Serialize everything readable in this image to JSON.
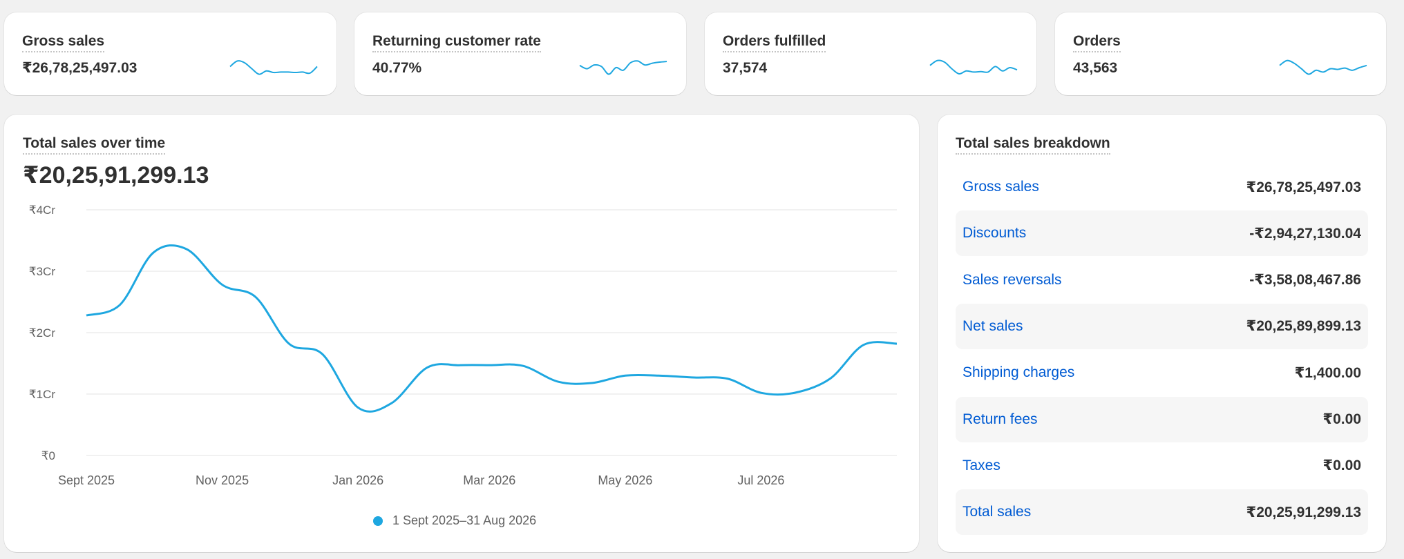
{
  "colors": {
    "accent": "#1ea7e0",
    "link": "#005bd3",
    "gridline": "#e3e3e3",
    "background": "#f1f1f1"
  },
  "metrics": [
    {
      "title": "Gross sales",
      "value": "₹26,78,25,497.03",
      "sparkline": [
        0.55,
        0.8,
        0.72,
        0.45,
        0.2,
        0.35,
        0.28,
        0.3,
        0.3,
        0.28,
        0.3,
        0.25,
        0.55
      ]
    },
    {
      "title": "Returning customer rate",
      "value": "40.77%",
      "sparkline": [
        0.6,
        0.45,
        0.62,
        0.55,
        0.2,
        0.5,
        0.38,
        0.72,
        0.8,
        0.62,
        0.7,
        0.75,
        0.78
      ]
    },
    {
      "title": "Orders fulfilled",
      "value": "37,574",
      "sparkline": [
        0.6,
        0.82,
        0.75,
        0.45,
        0.22,
        0.35,
        0.3,
        0.32,
        0.3,
        0.55,
        0.35,
        0.5,
        0.4
      ]
    },
    {
      "title": "Orders",
      "value": "43,563",
      "sparkline": [
        0.6,
        0.82,
        0.7,
        0.45,
        0.2,
        0.38,
        0.3,
        0.45,
        0.42,
        0.48,
        0.38,
        0.5,
        0.6
      ]
    }
  ],
  "sales_over_time": {
    "title": "Total sales over time",
    "total": "₹20,25,91,299.13",
    "legend_label": "1 Sept 2025–31 Aug 2026"
  },
  "chart_data": {
    "type": "line",
    "title": "Total sales over time",
    "x": [
      "2025-09-01",
      "2025-09-16",
      "2025-10-01",
      "2025-10-16",
      "2025-11-01",
      "2025-11-16",
      "2025-12-01",
      "2025-12-16",
      "2026-01-01",
      "2026-01-16",
      "2026-02-01",
      "2026-02-16",
      "2026-03-01",
      "2026-03-16",
      "2026-04-01",
      "2026-04-16",
      "2026-05-01",
      "2026-05-16",
      "2026-06-01",
      "2026-06-16",
      "2026-07-01",
      "2026-07-16",
      "2026-08-01",
      "2026-08-16",
      "2026-08-31"
    ],
    "series": [
      {
        "name": "1 Sept 2025–31 Aug 2026",
        "values": [
          2.28,
          2.45,
          3.3,
          3.36,
          2.78,
          2.58,
          1.82,
          1.65,
          0.78,
          0.85,
          1.43,
          1.47,
          1.47,
          1.46,
          1.2,
          1.18,
          1.3,
          1.3,
          1.27,
          1.25,
          1.02,
          1.02,
          1.25,
          1.8,
          1.82
        ]
      }
    ],
    "y_unit": "Cr",
    "xticks": [
      "Sept 2025",
      "Nov 2025",
      "Jan 2026",
      "Mar 2026",
      "May 2026",
      "Jul 2026"
    ],
    "yticks": [
      "₹0",
      "₹1Cr",
      "₹2Cr",
      "₹3Cr",
      "₹4Cr"
    ],
    "ylim": [
      0,
      4
    ],
    "grid": true,
    "legend": "bottom-center"
  },
  "breakdown": {
    "title": "Total sales breakdown",
    "rows": [
      {
        "label": "Gross sales",
        "value": "₹26,78,25,497.03"
      },
      {
        "label": "Discounts",
        "value": "-₹2,94,27,130.04"
      },
      {
        "label": "Sales reversals",
        "value": "-₹3,58,08,467.86"
      },
      {
        "label": "Net sales",
        "value": "₹20,25,89,899.13"
      },
      {
        "label": "Shipping charges",
        "value": "₹1,400.00"
      },
      {
        "label": "Return fees",
        "value": "₹0.00"
      },
      {
        "label": "Taxes",
        "value": "₹0.00"
      },
      {
        "label": "Total sales",
        "value": "₹20,25,91,299.13"
      }
    ]
  }
}
